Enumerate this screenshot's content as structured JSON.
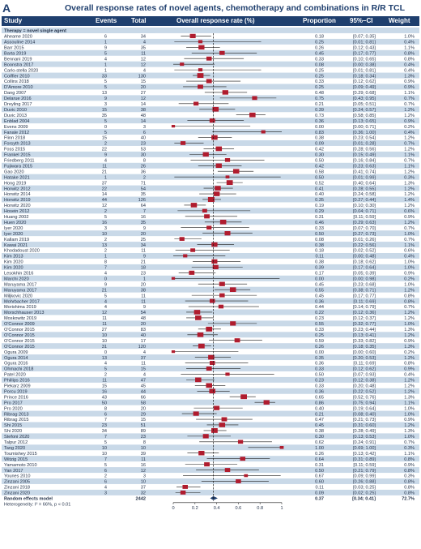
{
  "panel_letter": "A",
  "title": "Overall response rates of novel agents, chemotherapy and combinations in R/R TCL",
  "header": {
    "study": "Study",
    "events": "Events",
    "total": "Total",
    "rate": "Overall response rate (%)",
    "proportion": "Proportion",
    "ci": "95%–CI",
    "weight": "Weight"
  },
  "subgroup_label": "Therapy = novel single agent",
  "summary": {
    "study": "Random effects model",
    "events": "",
    "total": "2442",
    "proportion": "0.37",
    "ci": "[0.34; 0.41]",
    "weight": "72.7%"
  },
  "heterogeneity": "Heterogeneity: I² = 66%, p < 0.01",
  "colors": {
    "header": "#1f3f6e",
    "band": "#c9d9e8",
    "marker": "#b01c2e",
    "text": "#1f2d45",
    "diamond": "#1f3f6e"
  },
  "chart_data": {
    "type": "forest",
    "xlim": [
      0,
      1
    ],
    "xticks": [
      "0",
      "0.2",
      "0.4",
      "0.6",
      "0.8",
      "1"
    ],
    "reference_line": 0.37,
    "rows": [
      {
        "study": "Aheame 2020",
        "events": "6",
        "total": "34",
        "proportion": "0.18",
        "ci": "[0.07; 0.35]",
        "weight": "1.0%"
      },
      {
        "study": "Assouline 2014",
        "events": "1",
        "total": "4",
        "proportion": "0.25",
        "ci": "[0.01; 0.81]",
        "weight": "0.4%"
      },
      {
        "study": "Barr 2015",
        "events": "9",
        "total": "35",
        "proportion": "0.26",
        "ci": "[0.12; 0.43]",
        "weight": "1.1%"
      },
      {
        "study": "Barta 2019",
        "events": "5",
        "total": "11",
        "proportion": "0.45",
        "ci": "[0.17; 0.77]",
        "weight": "0.8%"
      },
      {
        "study": "Bennani 2019",
        "events": "4",
        "total": "12",
        "proportion": "0.33",
        "ci": "[0.10; 0.65]",
        "weight": "0.8%"
      },
      {
        "study": "Boonstra 2017",
        "events": "1",
        "total": "12",
        "proportion": "0.08",
        "ci": "[0.00; 0.38]",
        "weight": "0.4%"
      },
      {
        "study": "Carlo-stella 2020",
        "events": "1",
        "total": "4",
        "proportion": "0.25",
        "ci": "[0.01; 0.81]",
        "weight": "0.4%"
      },
      {
        "study": "Coiffier 2010",
        "events": "33",
        "total": "130",
        "proportion": "0.25",
        "ci": "[0.18; 0.34]",
        "weight": "1.3%"
      },
      {
        "study": "Collins 2018",
        "events": "5",
        "total": "15",
        "proportion": "0.33",
        "ci": "[0.12; 0.62]",
        "weight": "0.9%"
      },
      {
        "study": "D'Amore 2010",
        "events": "5",
        "total": "20",
        "proportion": "0.25",
        "ci": "[0.09; 0.49]",
        "weight": "0.9%"
      },
      {
        "study": "Dang 2007",
        "events": "13",
        "total": "27",
        "proportion": "0.48",
        "ci": "[0.29; 0.68]",
        "weight": "1.1%"
      },
      {
        "study": "Delarue 2016",
        "events": "9",
        "total": "12",
        "proportion": "0.75",
        "ci": "[0.43; 0.95]",
        "weight": "0.7%"
      },
      {
        "study": "Dreyling 2017",
        "events": "3",
        "total": "14",
        "proportion": "0.21",
        "ci": "[0.05; 0.51]",
        "weight": "0.7%"
      },
      {
        "study": "Duvic 2010",
        "events": "15",
        "total": "38",
        "proportion": "0.39",
        "ci": "[0.24; 0.57]",
        "weight": "1.2%"
      },
      {
        "study": "Duvic 2013",
        "events": "35",
        "total": "48",
        "proportion": "0.73",
        "ci": "[0.58; 0.85]",
        "weight": "1.2%"
      },
      {
        "study": "Enblad 2004",
        "events": "5",
        "total": "14",
        "proportion": "0.36",
        "ci": "[0.13; 0.65]",
        "weight": "0.9%"
      },
      {
        "study": "Evens 2009",
        "events": "0",
        "total": "3",
        "proportion": "0.00",
        "ci": "[0.00; 0.71]",
        "weight": "0.2%"
      },
      {
        "study": "Fanale 2012",
        "events": "5",
        "total": "6",
        "proportion": "0.83",
        "ach": "",
        "ci": "[0.36; 1.00]",
        "weight": "0.4%"
      },
      {
        "study": "Flinn 2018",
        "events": "15",
        "total": "40",
        "proportion": "0.38",
        "ci": "[0.23; 0.54]",
        "weight": "1.2%"
      },
      {
        "study": "Forsyth 2013",
        "events": "2",
        "total": "23",
        "proportion": "0.09",
        "ci": "[0.01; 0.28]",
        "weight": "0.7%"
      },
      {
        "study": "Foss 2015",
        "events": "22",
        "total": "53",
        "proportion": "0.42",
        "ci": "[0.28; 0.56]",
        "weight": "1.2%"
      },
      {
        "study": "Frankel 2015",
        "events": "9",
        "total": "30",
        "proportion": "0.30",
        "ci": "[0.15; 0.49]",
        "weight": "1.1%"
      },
      {
        "study": "Friedberg 2011",
        "events": "4",
        "total": "8",
        "proportion": "0.50",
        "ci": "[0.16; 0.84]",
        "weight": "0.7%"
      },
      {
        "study": "Fujiwara 2015",
        "events": "11",
        "total": "26",
        "proportion": "0.42",
        "ci": "[0.23; 0.63]",
        "weight": "1.1%"
      },
      {
        "study": "Gao 2020",
        "events": "21",
        "total": "36",
        "proportion": "0.58",
        "ci": "[0.41; 0.74]",
        "weight": "1.2%"
      },
      {
        "study": "Hatake 2021",
        "events": "1",
        "total": "2",
        "proportion": "0.50",
        "ci": "[0.01; 0.99]",
        "weight": "0.3%"
      },
      {
        "study": "Hong 2019",
        "events": "37",
        "total": "71",
        "proportion": "0.52",
        "ci": "[0.40; 0.64]",
        "weight": "1.3%"
      },
      {
        "study": "Horwitz 2012",
        "events": "22",
        "total": "54",
        "proportion": "0.41",
        "ci": "[0.28; 0.55]",
        "weight": "1.2%"
      },
      {
        "study": "Horwitz 2014",
        "events": "14",
        "total": "35",
        "proportion": "0.40",
        "ci": "[0.24; 0.58]",
        "weight": "1.2%"
      },
      {
        "study": "Horwitz 2019",
        "events": "44",
        "total": "126",
        "proportion": "0.35",
        "ci": "[0.27; 0.44]",
        "weight": "1.4%"
      },
      {
        "study": "Horwitz 2020",
        "events": "12",
        "total": "64",
        "proportion": "0.19",
        "ci": "[0.10; 0.30]",
        "weight": "1.2%"
      },
      {
        "study": "Hosein 2012",
        "events": "2",
        "total": "7",
        "proportion": "0.29",
        "ci": "[0.04; 0.71]",
        "weight": "0.6%"
      },
      {
        "study": "Huang 2002",
        "events": "5",
        "total": "16",
        "proportion": "0.31",
        "ci": "[0.11; 0.59]",
        "weight": "0.9%"
      },
      {
        "study": "Huen 2020",
        "events": "16",
        "total": "35",
        "proportion": "0.46",
        "ci": "[0.29; 0.63]",
        "weight": "1.2%"
      },
      {
        "study": "Iyer 2020",
        "events": "3",
        "total": "9",
        "proportion": "0.33",
        "ci": "[0.07; 0.70]",
        "weight": "0.7%"
      },
      {
        "study": "Iyer 2020",
        "events": "10",
        "total": "20",
        "proportion": "0.50",
        "ci": "[0.27; 0.73]",
        "weight": "1.0%"
      },
      {
        "study": "Kallam 2019",
        "events": "2",
        "total": "25",
        "proportion": "0.08",
        "ci": "[0.01; 0.26]",
        "weight": "0.7%"
      },
      {
        "study": "Kawai 2021",
        "events": "13",
        "total": "34",
        "proportion": "0.38",
        "ci": "[0.22; 0.56]",
        "weight": "1.1%"
      },
      {
        "study": "Khodadoust 2020",
        "events": "2",
        "total": "11",
        "proportion": "0.18",
        "ci": "[0.02; 0.52]",
        "weight": "0.6%"
      },
      {
        "study": "Kim 2013",
        "events": "1",
        "total": "9",
        "proportion": "0.11",
        "ci": "[0.00; 0.48]",
        "weight": "0.4%"
      },
      {
        "study": "Kim 2020",
        "events": "8",
        "total": "21",
        "proportion": "0.38",
        "ci": "[0.18; 0.62]",
        "weight": "1.0%"
      },
      {
        "study": "Kim 2020",
        "events": "7",
        "total": "18",
        "proportion": "0.39",
        "ci": "[0.17; 0.64]",
        "weight": "1.0%"
      },
      {
        "study": "Lesokhin 2016",
        "events": "4",
        "total": "23",
        "proportion": "0.17",
        "ci": "[0.05; 0.39]",
        "weight": "0.9%"
      },
      {
        "study": "Marchi 2020",
        "events": "0",
        "total": "1",
        "proportion": "0.00",
        "ci": "[0.00; 0.98]",
        "weight": "0.2%"
      },
      {
        "study": "Maruyama 2017",
        "events": "9",
        "total": "20",
        "proportion": "0.45",
        "ci": "[0.23; 0.68]",
        "weight": "1.0%"
      },
      {
        "study": "Maruyama 2017",
        "events": "21",
        "total": "38",
        "proportion": "0.55",
        "ci": "[0.38; 0.71]",
        "weight": "1.2%"
      },
      {
        "study": "Miljkovic 2020",
        "events": "5",
        "total": "11",
        "proportion": "0.45",
        "ci": "[0.17; 0.77]",
        "weight": "0.8%"
      },
      {
        "study": "Mohrbacher 2017",
        "events": "4",
        "total": "11",
        "proportion": "0.36",
        "ci": "[0.11; 0.69]",
        "weight": "0.8%"
      },
      {
        "study": "Morishima 2019",
        "events": "4",
        "total": "9",
        "proportion": "0.44",
        "ci": "[0.14; 0.79]",
        "weight": "0.7%"
      },
      {
        "study": "Morschhauser 2013",
        "events": "12",
        "total": "54",
        "proportion": "0.22",
        "ci": "[0.12; 0.36]",
        "weight": "1.2%"
      },
      {
        "study": "Moskowitz 2019",
        "events": "11",
        "total": "48",
        "proportion": "0.23",
        "ci": "[0.12; 0.37]",
        "weight": "1.2%"
      },
      {
        "study": "O'Connor 2009",
        "events": "11",
        "total": "20",
        "proportion": "0.55",
        "ci": "[0.32; 0.77]",
        "weight": "1.0%"
      },
      {
        "study": "O'Connor 2015",
        "events": "27",
        "total": "83",
        "proportion": "0.33",
        "ci": "[0.23; 0.44]",
        "weight": "1.3%"
      },
      {
        "study": "O'Connor 2015",
        "events": "10",
        "total": "40",
        "proportion": "0.25",
        "ci": "[0.13; 0.41]",
        "weight": "1.2%"
      },
      {
        "study": "O'Connor 2015",
        "events": "10",
        "total": "17",
        "proportion": "0.59",
        "ci": "[0.33; 0.82]",
        "weight": "0.9%"
      },
      {
        "study": "O'Connor 2015",
        "events": "31",
        "total": "120",
        "proportion": "0.26",
        "ci": "[0.18; 0.35]",
        "weight": "1.3%"
      },
      {
        "study": "Ogura 2009",
        "events": "0",
        "total": "4",
        "proportion": "0.00",
        "ci": "[0.00; 0.60]",
        "weight": "0.2%"
      },
      {
        "study": "Ogura 2014",
        "events": "13",
        "total": "37",
        "proportion": "0.35",
        "ci": "[0.20; 0.53]",
        "weight": "1.2%"
      },
      {
        "study": "Ogura 2016",
        "events": "4",
        "total": "11",
        "proportion": "0.36",
        "ci": "[0.11; 0.69]",
        "weight": "0.8%"
      },
      {
        "study": "Ohmachi 2018",
        "events": "5",
        "total": "15",
        "proportion": "0.33",
        "ci": "[0.12; 0.62]",
        "weight": "0.9%"
      },
      {
        "study": "Patel 2020",
        "events": "2",
        "total": "4",
        "proportion": "0.50",
        "ci": "[0.07; 0.93]",
        "weight": "0.4%"
      },
      {
        "study": "Phillips 2016",
        "events": "11",
        "total": "47",
        "proportion": "0.23",
        "ci": "[0.12; 0.38]",
        "weight": "1.2%"
      },
      {
        "study": "Piekarz 2009",
        "events": "15",
        "total": "45",
        "proportion": "0.33",
        "ci": "[0.20; 0.48]",
        "weight": "1.2%"
      },
      {
        "study": "Porcu 2019",
        "events": "16",
        "total": "44",
        "proportion": "0.36",
        "ci": "[0.22; 0.52]",
        "weight": "1.2%"
      },
      {
        "study": "Prince 2016",
        "events": "43",
        "total": "66",
        "proportion": "0.65",
        "ci": "[0.52; 0.76]",
        "weight": "1.3%"
      },
      {
        "study": "Pro 2017",
        "events": "50",
        "total": "58",
        "proportion": "0.86",
        "ci": "[0.75; 0.94]",
        "weight": "1.1%"
      },
      {
        "study": "Pro 2020",
        "events": "8",
        "total": "20",
        "proportion": "0.40",
        "ci": "[0.19; 0.64]",
        "weight": "1.0%"
      },
      {
        "study": "Ribrag 2013",
        "events": "6",
        "total": "29",
        "proportion": "0.21",
        "ci": "[0.08; 0.40]",
        "weight": "1.0%"
      },
      {
        "study": "Ribrag 2015",
        "events": "7",
        "total": "15",
        "proportion": "0.47",
        "ci": "[0.21; 0.73]",
        "weight": "0.9%"
      },
      {
        "study": "Shi 2015",
        "events": "23",
        "total": "51",
        "proportion": "0.45",
        "ci": "[0.31; 0.60]",
        "weight": "1.2%"
      },
      {
        "study": "Shi 2020",
        "events": "34",
        "total": "89",
        "proportion": "0.38",
        "ci": "[0.28; 0.49]",
        "weight": "1.3%"
      },
      {
        "study": "Stefoni 2020",
        "events": "7",
        "total": "23",
        "proportion": "0.30",
        "ci": "[0.13; 0.53]",
        "weight": "1.0%"
      },
      {
        "study": "Talpur 2012",
        "events": "5",
        "total": "8",
        "proportion": "0.62",
        "ci": "[0.24; 0.91]",
        "weight": "0.7%"
      },
      {
        "study": "Tang 2020",
        "events": "10",
        "total": "10",
        "proportion": "1.00",
        "ci": "[0.69; 1.00]",
        "weight": "0.3%"
      },
      {
        "study": "Toumishey 2015",
        "events": "10",
        "total": "39",
        "proportion": "0.26",
        "ci": "[0.13; 0.42]",
        "weight": "1.1%"
      },
      {
        "study": "Witzig 2015",
        "events": "7",
        "total": "11",
        "proportion": "0.64",
        "ci": "[0.31; 0.89]",
        "weight": "0.8%"
      },
      {
        "study": "Yamamoto 2010",
        "events": "5",
        "total": "16",
        "proportion": "0.31",
        "ci": "[0.11; 0.59]",
        "weight": "0.9%"
      },
      {
        "study": "Yan 2017",
        "events": "6",
        "total": "12",
        "proportion": "0.50",
        "ci": "[0.21; 0.79]",
        "weight": "0.8%"
      },
      {
        "study": "Younes 2010",
        "events": "2",
        "total": "3",
        "proportion": "0.67",
        "ci": "[0.09; 0.99]",
        "weight": "0.3%"
      },
      {
        "study": "Zinzani 2005",
        "events": "6",
        "total": "10",
        "proportion": "0.60",
        "ci": "[0.26; 0.88]",
        "weight": "0.8%"
      },
      {
        "study": "Zinzani 2018",
        "events": "4",
        "total": "37",
        "proportion": "0.11",
        "ci": "[0.03; 0.25]",
        "weight": "0.8%"
      },
      {
        "study": "Zinzani 2020",
        "events": "3",
        "total": "32",
        "proportion": "0.09",
        "ci": "[0.02; 0.25]",
        "weight": "0.8%"
      }
    ]
  }
}
